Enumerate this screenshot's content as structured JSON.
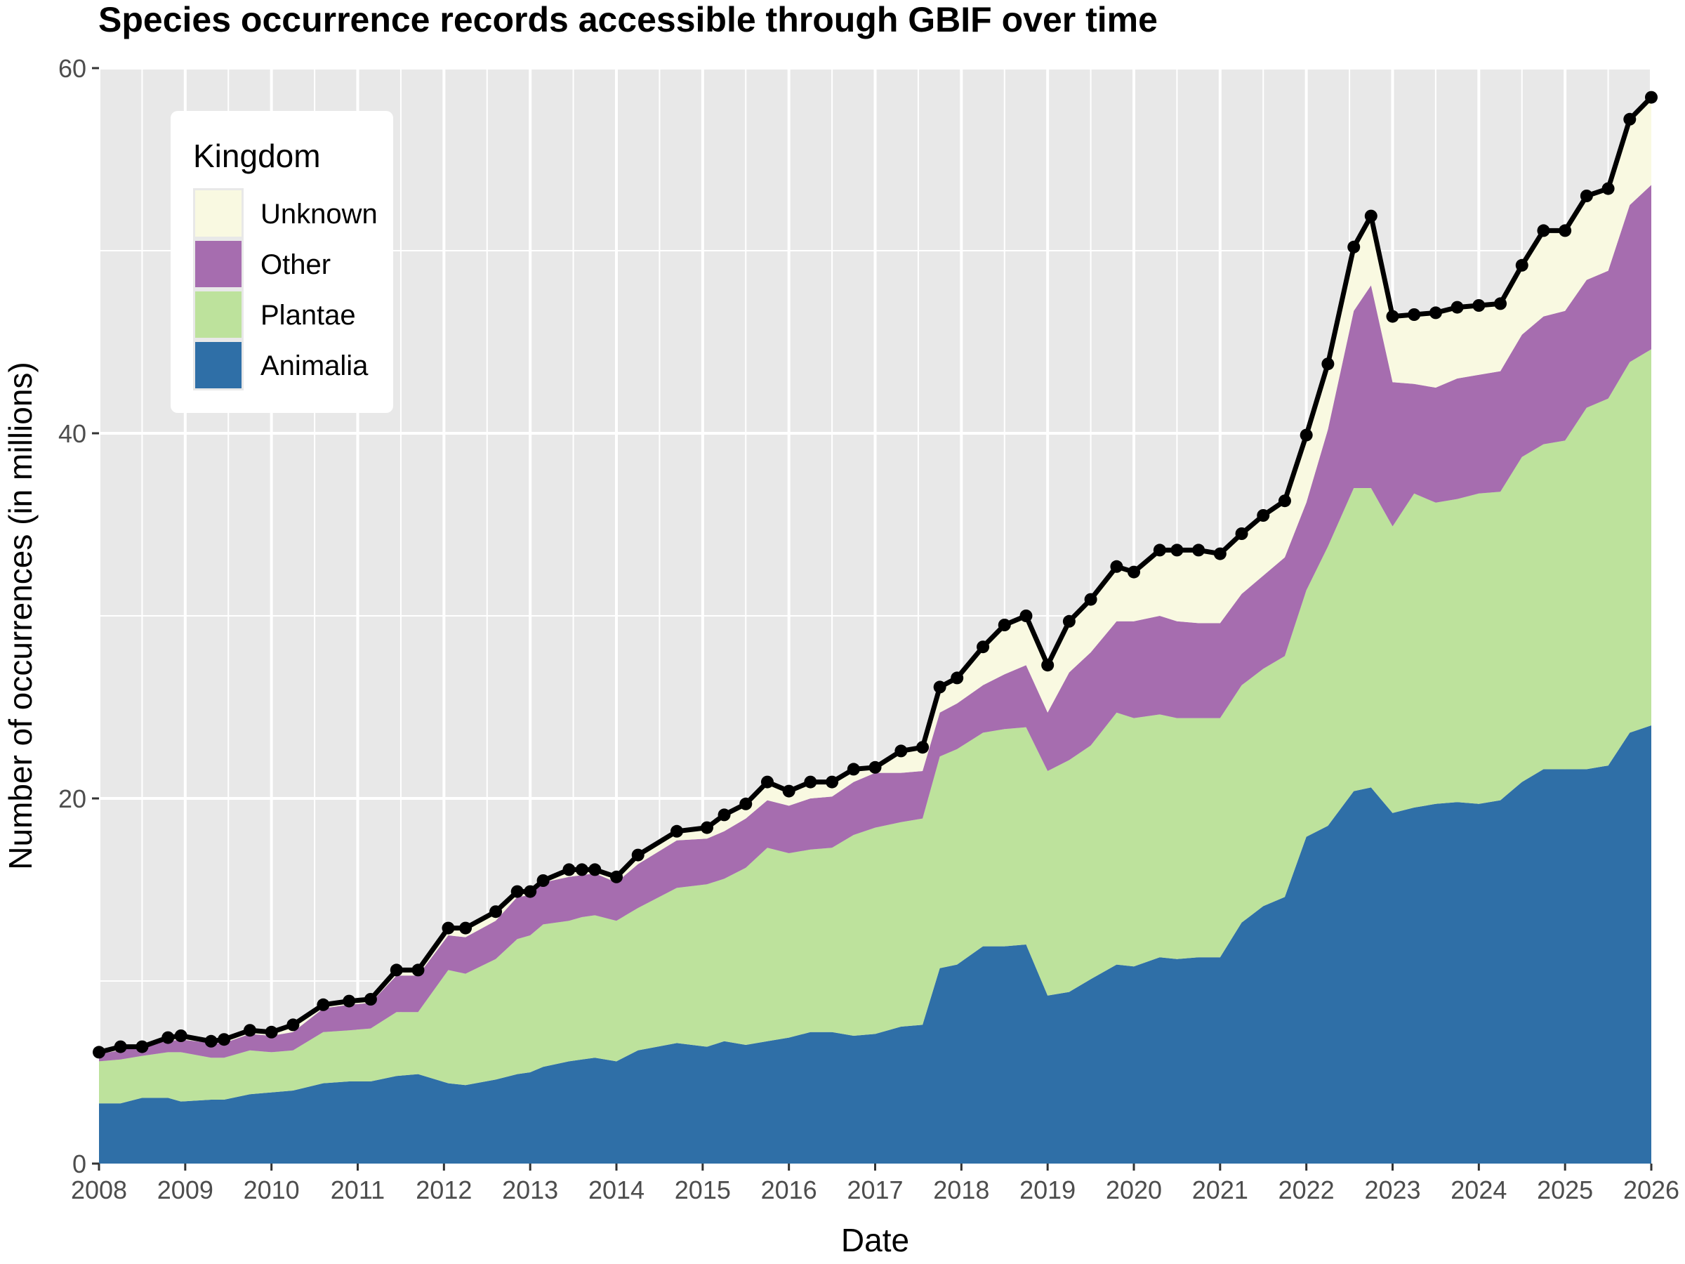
{
  "chart_data": {
    "type": "area",
    "title": "Species occurrence records accessible through GBIF over time",
    "xlabel": "Date",
    "ylabel": "Number of occurrences (in millions)",
    "xlim": [
      2008,
      2026
    ],
    "ylim": [
      0,
      60
    ],
    "x_ticks": [
      "2008",
      "2009",
      "2010",
      "2011",
      "2012",
      "2013",
      "2014",
      "2015",
      "2016",
      "2017",
      "2018",
      "2019",
      "2020",
      "2021",
      "2022",
      "2023",
      "2024",
      "2025",
      "2026"
    ],
    "y_ticks": [
      "0",
      "20",
      "40",
      "60"
    ],
    "grid": true,
    "stacked": true,
    "legend": {
      "title": "Kingdom",
      "position": "top-left",
      "entries": [
        "Unknown",
        "Other",
        "Plantae",
        "Animalia"
      ]
    },
    "colors": {
      "Animalia": "#2f6fa7",
      "Plantae": "#bde29c",
      "Other": "#a66daf",
      "Unknown": "#f9f9e1",
      "Total": "#000000"
    },
    "x": [
      2008.0,
      2008.25,
      2008.5,
      2008.8,
      2008.95,
      2009.3,
      2009.45,
      2009.75,
      2010.0,
      2010.25,
      2010.6,
      2010.9,
      2011.15,
      2011.45,
      2011.7,
      2012.05,
      2012.25,
      2012.6,
      2012.85,
      2013.0,
      2013.15,
      2013.45,
      2013.6,
      2013.75,
      2014.0,
      2014.25,
      2014.7,
      2015.05,
      2015.25,
      2015.5,
      2015.75,
      2016.0,
      2016.25,
      2016.5,
      2016.75,
      2017.0,
      2017.3,
      2017.55,
      2017.75,
      2017.95,
      2018.25,
      2018.5,
      2018.75,
      2019.0,
      2019.25,
      2019.5,
      2019.8,
      2020.0,
      2020.3,
      2020.5,
      2020.75,
      2021.0,
      2021.25,
      2021.5,
      2021.75,
      2022.0,
      2022.25,
      2022.55,
      2022.75,
      2023.0,
      2023.25,
      2023.5,
      2023.75,
      2024.0,
      2024.25,
      2024.5,
      2024.75,
      2025.0,
      2025.25,
      2025.5,
      2025.75,
      2026.0
    ],
    "series": [
      {
        "name": "Animalia",
        "values": [
          3.3,
          3.3,
          3.6,
          3.6,
          3.4,
          3.5,
          3.5,
          3.8,
          3.9,
          4.0,
          4.4,
          4.5,
          4.5,
          4.8,
          4.9,
          4.4,
          4.3,
          4.6,
          4.9,
          5.0,
          5.3,
          5.6,
          5.7,
          5.8,
          5.6,
          6.2,
          6.6,
          6.4,
          6.7,
          6.5,
          6.7,
          6.9,
          7.2,
          7.2,
          7.0,
          7.1,
          7.5,
          7.6,
          10.7,
          10.9,
          11.9,
          11.9,
          12.0,
          9.2,
          9.4,
          10.1,
          10.9,
          10.8,
          11.3,
          11.2,
          11.3,
          11.3,
          13.2,
          14.1,
          14.6,
          17.9,
          18.5,
          20.4,
          20.6,
          19.2,
          19.5,
          19.7,
          19.8,
          19.7,
          19.9,
          20.9,
          21.6,
          21.6,
          21.6,
          21.8,
          23.6,
          24.0
        ]
      },
      {
        "name": "Plantae",
        "values": [
          2.3,
          2.4,
          2.3,
          2.5,
          2.7,
          2.3,
          2.3,
          2.4,
          2.2,
          2.2,
          2.8,
          2.8,
          2.9,
          3.5,
          3.4,
          6.2,
          6.1,
          6.6,
          7.4,
          7.5,
          7.8,
          7.7,
          7.8,
          7.8,
          7.7,
          7.8,
          8.5,
          8.9,
          8.9,
          9.7,
          10.6,
          10.1,
          10.0,
          10.1,
          11.0,
          11.3,
          11.2,
          11.3,
          11.6,
          11.8,
          11.7,
          11.9,
          11.9,
          12.3,
          12.7,
          12.8,
          13.8,
          13.6,
          13.3,
          13.2,
          13.1,
          13.1,
          13.0,
          13.0,
          13.2,
          13.5,
          15.3,
          16.6,
          16.4,
          15.7,
          17.2,
          16.5,
          16.6,
          17.0,
          16.9,
          17.8,
          17.8,
          18.0,
          19.8,
          20.1,
          20.3,
          20.6
        ]
      },
      {
        "name": "Other",
        "values": [
          0.4,
          0.5,
          0.6,
          0.6,
          0.7,
          0.8,
          0.8,
          0.9,
          0.9,
          1.0,
          1.3,
          1.4,
          1.4,
          2.0,
          2.0,
          1.9,
          2.0,
          2.1,
          2.3,
          2.2,
          2.3,
          2.4,
          2.3,
          2.3,
          2.1,
          2.4,
          2.6,
          2.5,
          2.6,
          2.7,
          2.6,
          2.6,
          2.8,
          2.8,
          2.9,
          3.0,
          2.7,
          2.6,
          2.4,
          2.5,
          2.6,
          3.0,
          3.4,
          3.2,
          4.8,
          5.1,
          5.0,
          5.3,
          5.4,
          5.3,
          5.2,
          5.2,
          5.0,
          5.1,
          5.4,
          4.8,
          6.4,
          9.7,
          11.1,
          7.9,
          6.0,
          6.3,
          6.6,
          6.5,
          6.6,
          6.7,
          7.0,
          7.1,
          7.0,
          7.0,
          8.6,
          9.0
        ]
      },
      {
        "name": "Unknown",
        "values": [
          0.1,
          0.2,
          0.0,
          0.2,
          0.2,
          0.1,
          0.2,
          0.2,
          0.2,
          0.4,
          0.2,
          0.2,
          0.2,
          0.3,
          0.3,
          0.4,
          0.5,
          0.5,
          0.3,
          0.2,
          0.1,
          0.4,
          0.3,
          0.2,
          0.3,
          0.5,
          0.5,
          0.6,
          0.9,
          0.8,
          1.0,
          0.8,
          0.9,
          0.8,
          0.7,
          0.3,
          1.2,
          1.3,
          1.4,
          1.4,
          2.1,
          2.7,
          2.7,
          2.6,
          2.8,
          2.9,
          3.0,
          2.7,
          3.6,
          3.9,
          4.0,
          3.8,
          3.3,
          3.3,
          3.1,
          3.7,
          3.6,
          3.5,
          3.8,
          3.6,
          3.8,
          4.1,
          3.9,
          3.8,
          3.7,
          3.8,
          4.7,
          4.4,
          4.6,
          4.5,
          4.7,
          4.8
        ]
      },
      {
        "name": "Total",
        "type": "line+points",
        "values": [
          6.1,
          6.4,
          6.4,
          6.9,
          7.0,
          6.7,
          6.8,
          7.3,
          7.2,
          7.6,
          8.7,
          8.9,
          9.0,
          10.6,
          10.6,
          12.9,
          12.9,
          13.8,
          14.9,
          14.9,
          15.5,
          16.1,
          16.1,
          16.1,
          15.7,
          16.9,
          18.2,
          18.4,
          19.1,
          19.7,
          20.9,
          20.4,
          20.9,
          20.9,
          21.6,
          21.7,
          22.6,
          22.8,
          26.1,
          26.6,
          28.3,
          29.5,
          30.0,
          27.3,
          29.7,
          30.9,
          32.7,
          32.4,
          33.6,
          33.6,
          33.6,
          33.4,
          34.5,
          35.5,
          36.3,
          39.9,
          43.8,
          50.2,
          51.9,
          46.4,
          46.5,
          46.6,
          46.9,
          47.0,
          47.1,
          49.2,
          51.1,
          51.1,
          53.0,
          53.4,
          57.2,
          58.4
        ]
      }
    ]
  }
}
